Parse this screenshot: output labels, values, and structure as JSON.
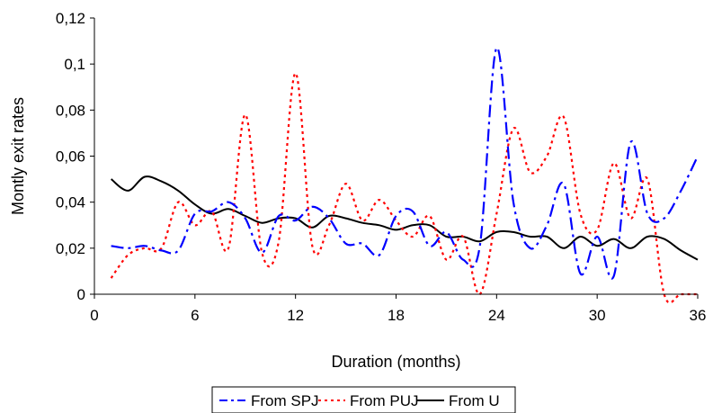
{
  "chart_data": {
    "type": "line",
    "title": "",
    "xlabel": "Duration (months)",
    "ylabel": "Montly exit rates",
    "xlim": [
      0,
      36
    ],
    "ylim": [
      0,
      0.12
    ],
    "x_ticks": [
      0,
      6,
      12,
      18,
      24,
      30,
      36
    ],
    "x_tick_labels": [
      "0",
      "6",
      "12",
      "18",
      "24",
      "30",
      "36"
    ],
    "y_ticks": [
      0,
      0.02,
      0.04,
      0.06,
      0.08,
      0.1,
      0.12
    ],
    "y_tick_labels": [
      "0",
      "0,02",
      "0,04",
      "0,06",
      "0,08",
      "0,1",
      "0,12"
    ],
    "grid": false,
    "legend_position": "bottom",
    "series": [
      {
        "name": "From SPJ",
        "color": "#0000ff",
        "style": "long-dash-dot",
        "x": [
          1,
          2,
          3,
          4,
          5,
          6,
          7,
          8,
          9,
          10,
          11,
          12,
          13,
          14,
          15,
          16,
          17,
          18,
          19,
          20,
          21,
          22,
          23,
          24,
          25,
          26,
          27,
          28,
          29,
          30,
          31,
          32,
          33,
          34,
          35,
          36
        ],
        "y": [
          0.021,
          0.02,
          0.021,
          0.019,
          0.019,
          0.035,
          0.036,
          0.04,
          0.033,
          0.018,
          0.034,
          0.032,
          0.038,
          0.033,
          0.022,
          0.022,
          0.017,
          0.034,
          0.036,
          0.021,
          0.027,
          0.015,
          0.021,
          0.107,
          0.04,
          0.02,
          0.03,
          0.048,
          0.009,
          0.025,
          0.008,
          0.066,
          0.035,
          0.033,
          0.045,
          0.06
        ]
      },
      {
        "name": "From PUJ",
        "color": "#ff0000",
        "style": "dotted",
        "x": [
          1,
          2,
          3,
          4,
          5,
          6,
          7,
          8,
          9,
          10,
          11,
          12,
          13,
          14,
          15,
          16,
          17,
          18,
          19,
          20,
          21,
          22,
          23,
          24,
          25,
          26,
          27,
          28,
          29,
          30,
          31,
          32,
          33,
          34,
          35,
          36
        ],
        "y": [
          0.007,
          0.017,
          0.02,
          0.02,
          0.04,
          0.03,
          0.036,
          0.02,
          0.078,
          0.018,
          0.023,
          0.096,
          0.021,
          0.03,
          0.048,
          0.032,
          0.041,
          0.032,
          0.025,
          0.034,
          0.015,
          0.025,
          0.0,
          0.035,
          0.072,
          0.053,
          0.06,
          0.077,
          0.035,
          0.028,
          0.057,
          0.033,
          0.05,
          0.0,
          0.0,
          0.0
        ]
      },
      {
        "name": "From U",
        "color": "#000000",
        "style": "solid",
        "x": [
          1,
          2,
          3,
          4,
          5,
          6,
          7,
          8,
          9,
          10,
          11,
          12,
          13,
          14,
          15,
          16,
          17,
          18,
          19,
          20,
          21,
          22,
          23,
          24,
          25,
          26,
          27,
          28,
          29,
          30,
          31,
          32,
          33,
          34,
          35,
          36
        ],
        "y": [
          0.05,
          0.045,
          0.051,
          0.049,
          0.045,
          0.039,
          0.035,
          0.037,
          0.034,
          0.031,
          0.033,
          0.033,
          0.029,
          0.034,
          0.033,
          0.031,
          0.03,
          0.028,
          0.03,
          0.03,
          0.025,
          0.025,
          0.023,
          0.027,
          0.027,
          0.025,
          0.025,
          0.02,
          0.025,
          0.021,
          0.024,
          0.02,
          0.025,
          0.024,
          0.019,
          0.015
        ]
      }
    ]
  }
}
